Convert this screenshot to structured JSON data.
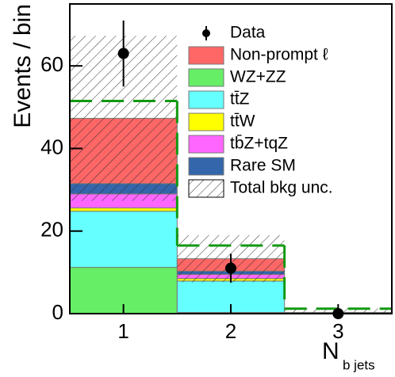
{
  "chart_data": {
    "type": "stacked-histogram",
    "y_label": "Events / bin",
    "x_label": "N",
    "x_label_sub": "b jets",
    "categories": [
      "1",
      "2",
      "3"
    ],
    "ylim": [
      0,
      75
    ],
    "yticks": [
      0,
      20,
      40,
      60
    ],
    "series": [
      {
        "name": "WZ+ZZ",
        "color": "#66ee66",
        "values": [
          11.2,
          0.3,
          0.1
        ]
      },
      {
        "name": "tt̄Z",
        "color": "#66ffff",
        "values": [
          13.6,
          7.6,
          0.1
        ]
      },
      {
        "name": "tt̄W",
        "color": "#ffff00",
        "values": [
          0.8,
          0.6,
          0.0
        ]
      },
      {
        "name": "tb̄Z+tqZ",
        "color": "#ff66ff",
        "values": [
          3.4,
          1.0,
          0.0
        ]
      },
      {
        "name": "Rare SM",
        "color": "#3366aa",
        "values": [
          2.5,
          0.8,
          0.0
        ]
      },
      {
        "name": "Non-prompt ℓ",
        "color": "#ff6666",
        "values": [
          15.8,
          3.0,
          0.1
        ]
      }
    ],
    "uncertainty": {
      "name": "Total bkg unc.",
      "values": [
        20,
        5.7,
        1.0
      ]
    },
    "data": {
      "name": "Data",
      "values": [
        63,
        11,
        0
      ],
      "errors": [
        8,
        3.5,
        0
      ]
    },
    "dashed_line": {
      "color": "#119911",
      "values": [
        51.5,
        16.5,
        1.2
      ]
    }
  }
}
